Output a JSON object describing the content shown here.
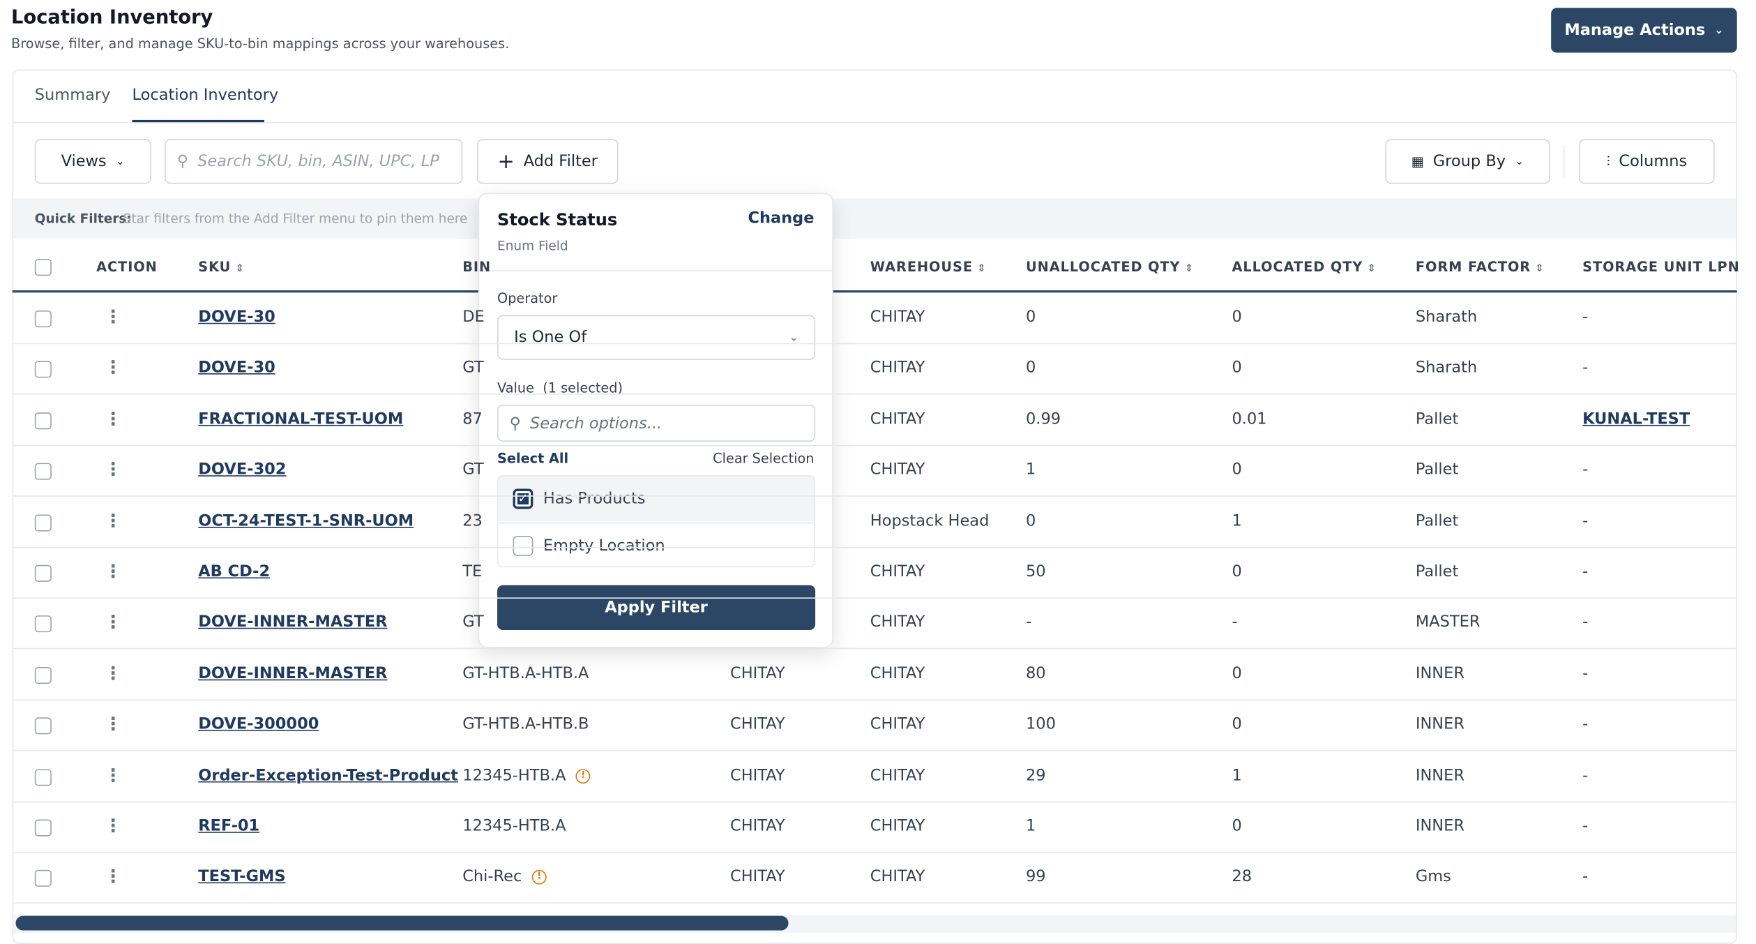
{
  "header": {
    "title": "Location Inventory",
    "subtitle": "Browse, filter, and manage SKU-to-bin mappings across your warehouses.",
    "action_button": "Manage Actions"
  },
  "tabs": [
    {
      "label": "Summary",
      "active": false
    },
    {
      "label": "Location Inventory",
      "active": true
    }
  ],
  "toolbar": {
    "views": "Views",
    "search_placeholder": "Search SKU, bin, ASIN, UPC, LP",
    "add_filter": "Add Filter",
    "group_by": "Group By",
    "columns": "Columns"
  },
  "quick_filters": {
    "label": "Quick Filters:",
    "hint": "Star filters from the Add Filter menu to pin them here"
  },
  "table": {
    "headers": [
      "ACTION",
      "SKU",
      "BIN",
      "WAREHOUSE",
      "UNALLOCATED QTY",
      "ALLOCATED QTY",
      "FORM FACTOR",
      "STORAGE UNIT LPN"
    ],
    "rows": [
      {
        "sku": "DOVE-30",
        "bin": "DE",
        "bin_warning": false,
        "location": null,
        "warehouse": "CHITAY",
        "unallocated": "0",
        "allocated": "0",
        "form_factor": "Sharath",
        "lpn": "-",
        "lpn_link": false
      },
      {
        "sku": "DOVE-30",
        "bin": "GT",
        "bin_warning": false,
        "location": null,
        "warehouse": "CHITAY",
        "unallocated": "0",
        "allocated": "0",
        "form_factor": "Sharath",
        "lpn": "-",
        "lpn_link": false
      },
      {
        "sku": "FRACTIONAL-TEST-UOM",
        "bin": "87",
        "bin_warning": false,
        "location": null,
        "warehouse": "CHITAY",
        "unallocated": "0.99",
        "allocated": "0.01",
        "form_factor": "Pallet",
        "lpn": "KUNAL-TEST",
        "lpn_link": true
      },
      {
        "sku": "DOVE-302",
        "bin": "GT",
        "bin_warning": false,
        "location": null,
        "warehouse": "CHITAY",
        "unallocated": "1",
        "allocated": "0",
        "form_factor": "Pallet",
        "lpn": "-",
        "lpn_link": false
      },
      {
        "sku": "OCT-24-TEST-1-SNR-UOM",
        "bin": "23",
        "bin_warning": false,
        "location": null,
        "warehouse": "Hopstack Head",
        "unallocated": "0",
        "allocated": "1",
        "form_factor": "Pallet",
        "lpn": "-",
        "lpn_link": false
      },
      {
        "sku": "AB CD-2",
        "bin": "TE",
        "bin_warning": false,
        "location": null,
        "warehouse": "CHITAY",
        "unallocated": "50",
        "allocated": "0",
        "form_factor": "Pallet",
        "lpn": "-",
        "lpn_link": false
      },
      {
        "sku": "DOVE-INNER-MASTER",
        "bin": "GT",
        "bin_warning": false,
        "location": null,
        "warehouse": "CHITAY",
        "unallocated": "-",
        "allocated": "-",
        "form_factor": "MASTER",
        "lpn": "-",
        "lpn_link": false
      },
      {
        "sku": "DOVE-INNER-MASTER",
        "bin": "GT-HTB.A-HTB.A",
        "bin_warning": false,
        "location": "CHITAY",
        "warehouse": "CHITAY",
        "unallocated": "80",
        "allocated": "0",
        "form_factor": "INNER",
        "lpn": "-",
        "lpn_link": false
      },
      {
        "sku": "DOVE-300000",
        "bin": "GT-HTB.A-HTB.B",
        "bin_warning": false,
        "location": "CHITAY",
        "warehouse": "CHITAY",
        "unallocated": "100",
        "allocated": "0",
        "form_factor": "INNER",
        "lpn": "-",
        "lpn_link": false
      },
      {
        "sku": "Order-Exception-Test-Product",
        "bin": "12345-HTB.A",
        "bin_warning": true,
        "location": "CHITAY",
        "warehouse": "CHITAY",
        "unallocated": "29",
        "allocated": "1",
        "form_factor": "INNER",
        "lpn": "-",
        "lpn_link": false
      },
      {
        "sku": "REF-01",
        "bin": "12345-HTB.A",
        "bin_warning": false,
        "location": "CHITAY",
        "warehouse": "CHITAY",
        "unallocated": "1",
        "allocated": "0",
        "form_factor": "INNER",
        "lpn": "-",
        "lpn_link": false
      },
      {
        "sku": "TEST-GMS",
        "bin": "Chi-Rec",
        "bin_warning": true,
        "location": "CHITAY",
        "warehouse": "CHITAY",
        "unallocated": "99",
        "allocated": "28",
        "form_factor": "Gms",
        "lpn": "-",
        "lpn_link": false
      }
    ]
  },
  "filter_popover": {
    "title": "Stock Status",
    "subtitle": "Enum Field",
    "change": "Change",
    "operator_label": "Operator",
    "operator_value": "Is One Of",
    "value_label": "Value",
    "value_count": "(1 selected)",
    "search_placeholder": "Search options...",
    "select_all": "Select All",
    "clear_selection": "Clear Selection",
    "options": [
      {
        "label": "Has Products",
        "checked": true
      },
      {
        "label": "Empty Location",
        "checked": false
      }
    ],
    "apply": "Apply Filter"
  }
}
